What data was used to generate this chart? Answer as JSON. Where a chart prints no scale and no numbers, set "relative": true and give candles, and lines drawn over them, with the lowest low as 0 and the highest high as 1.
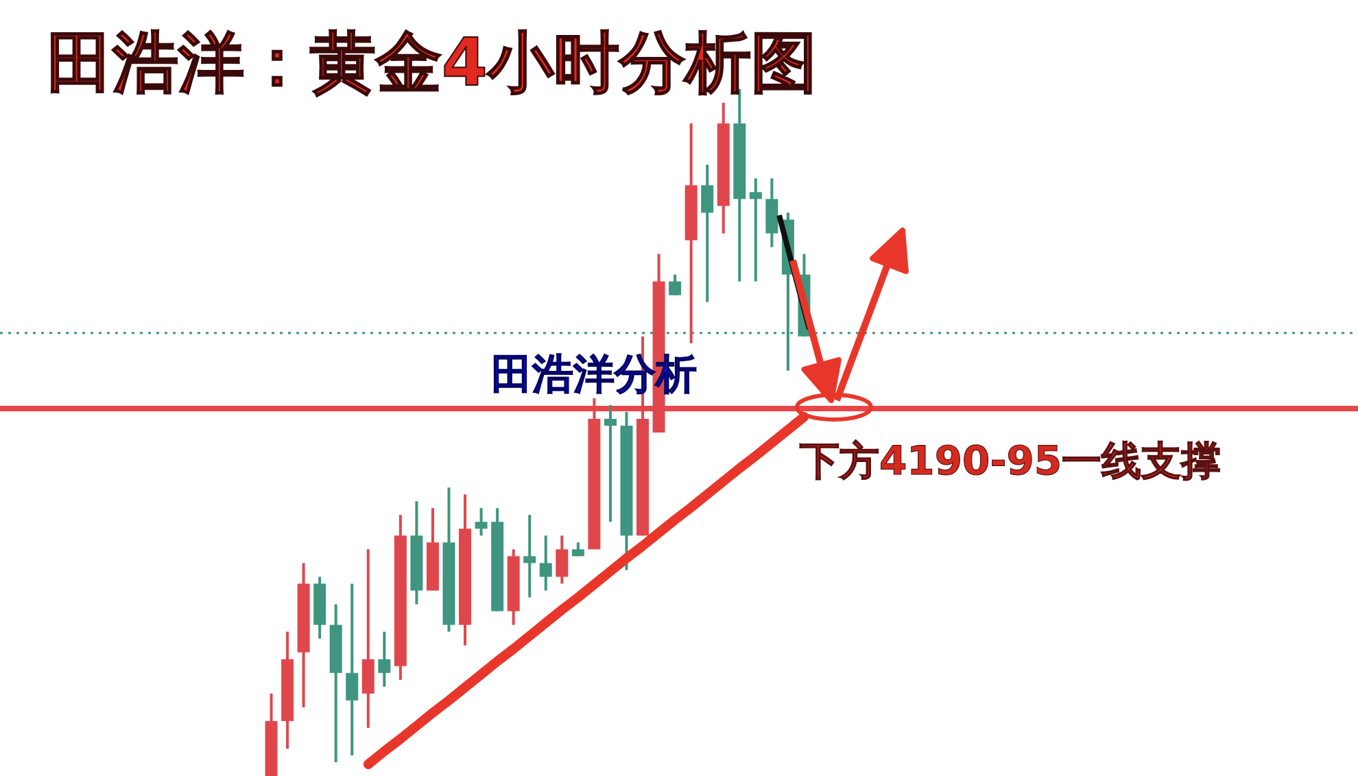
{
  "chart_data": {
    "type": "candlestick",
    "title": "田浩洋：黄金4小时分析图",
    "relative": true,
    "categories": [
      null,
      null,
      null,
      null,
      null,
      null,
      null,
      null,
      null,
      null,
      null,
      null,
      null,
      null,
      null,
      null,
      null,
      null,
      null,
      null,
      null,
      null,
      null,
      null,
      null,
      null,
      null,
      null,
      null,
      null,
      null,
      null,
      null,
      null
    ],
    "ohlc": [
      [
        0,
        0.12,
        0,
        0.08
      ],
      [
        0.08,
        0.21,
        0.04,
        0.17
      ],
      [
        0.18,
        0.31,
        0.1,
        0.28
      ],
      [
        0.28,
        0.29,
        0.2,
        0.22
      ],
      [
        0.22,
        0.25,
        0.02,
        0.15
      ],
      [
        0.15,
        0.28,
        0.03,
        0.11
      ],
      [
        0.12,
        0.33,
        0.07,
        0.17
      ],
      [
        0.17,
        0.21,
        0.13,
        0.15
      ],
      [
        0.16,
        0.38,
        0.14,
        0.35
      ],
      [
        0.35,
        0.4,
        0.25,
        0.27
      ],
      [
        0.27,
        0.39,
        0.27,
        0.34
      ],
      [
        0.34,
        0.42,
        0.21,
        0.22
      ],
      [
        0.22,
        0.41,
        0.19,
        0.36
      ],
      [
        0.37,
        0.39,
        0.35,
        0.36
      ],
      [
        0.37,
        0.39,
        0.24,
        0.24
      ],
      [
        0.24,
        0.33,
        0.22,
        0.32
      ],
      [
        0.32,
        0.38,
        0.26,
        0.31
      ],
      [
        0.31,
        0.35,
        0.27,
        0.29
      ],
      [
        0.29,
        0.35,
        0.28,
        0.33
      ],
      [
        0.33,
        0.34,
        0.32,
        0.32
      ],
      [
        0.33,
        0.55,
        0.33,
        0.52
      ],
      [
        0.52,
        0.54,
        0.37,
        0.51
      ],
      [
        0.51,
        0.53,
        0.3,
        0.35
      ],
      [
        0.35,
        0.64,
        0.35,
        0.52
      ],
      [
        0.5,
        0.76,
        0.5,
        0.72
      ],
      [
        0.72,
        0.73,
        0.7,
        0.7
      ],
      [
        0.78,
        0.95,
        0.63,
        0.86
      ],
      [
        0.86,
        0.89,
        0.69,
        0.82
      ],
      [
        0.83,
        0.98,
        0.79,
        0.95
      ],
      [
        0.95,
        1,
        0.72,
        0.84
      ],
      [
        0.85,
        0.87,
        0.72,
        0.84
      ],
      [
        0.84,
        0.87,
        0.77,
        0.79
      ],
      [
        0.81,
        0.82,
        0.59,
        0.73
      ],
      [
        0.73,
        0.76,
        0.64,
        0.64
      ]
    ],
    "colors": [
      "#e0474c",
      "#e0474c",
      "#e0474c",
      "#3f957f",
      "#3f957f",
      "#3f957f",
      "#e0474c",
      "#3f957f",
      "#e0474c",
      "#3f957f",
      "#e0474c",
      "#3f957f",
      "#e0474c",
      "#3f957f",
      "#3f957f",
      "#e0474c",
      "#3f957f",
      "#3f957f",
      "#e0474c",
      "#3f957f",
      "#e0474c",
      "#3f957f",
      "#3f957f",
      "#e0474c",
      "#e0474c",
      "#3f957f",
      "#e0474c",
      "#3f957f",
      "#e0474c",
      "#3f957f",
      "#3f957f",
      "#3f957f",
      "#3f957f",
      "#3f957f"
    ],
    "series": [
      {
        "type": "line",
        "color": "#e8372a",
        "values": [
          null,
          null,
          null,
          null,
          null,
          null,
          0.017,
          0.036,
          0.054,
          0.073,
          0.092,
          0.11,
          0.129,
          0.148,
          0.167,
          0.185,
          0.204,
          0.223,
          0.242,
          0.26,
          0.279,
          0.298,
          0.317,
          0.335,
          0.354,
          0.373,
          0.391,
          0.41,
          0.429,
          0.448,
          0.466,
          0.485,
          0.504,
          0.523
        ]
      }
    ],
    "ref_lines": [
      {
        "axis": "y",
        "value": 0.535,
        "label": "下方4190-95一线支撑",
        "color": "#e8474a"
      },
      {
        "axis": "y",
        "value": 0.645,
        "color": "#3f957f",
        "line_style": "dotted"
      }
    ],
    "annotations": [
      "田浩洋分析"
    ]
  }
}
